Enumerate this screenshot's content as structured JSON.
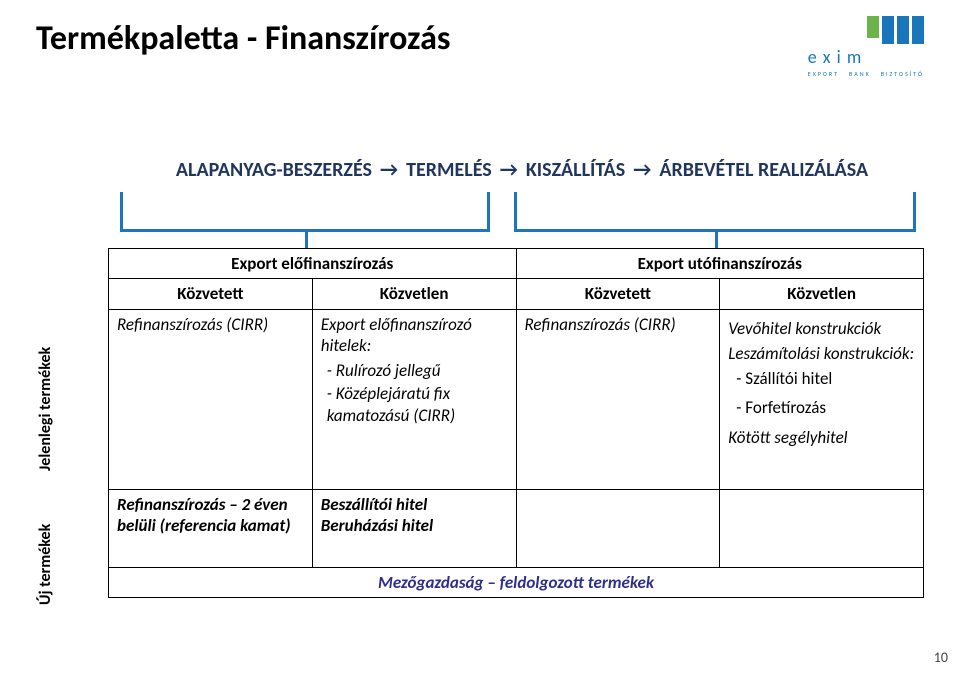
{
  "title": "Termékpaletta - Finanszírozás",
  "logo": {
    "bars": [
      {
        "color": "#6bb34a",
        "height": 22
      },
      {
        "color": "#1976bb",
        "height": 28
      },
      {
        "color": "#1976bb",
        "height": 28
      },
      {
        "color": "#1976bb",
        "height": 28
      }
    ],
    "word": "e x i m",
    "sub": [
      "EXPORT",
      "BANK",
      "BIZTOSÍTÓ"
    ]
  },
  "process": {
    "steps": [
      "ALAPANYAG-BESZERZÉS",
      "TERMELÉS",
      "KISZÁLLÍTÁS",
      "ÁRBEVÉTEL REALIZÁLÁSA"
    ],
    "arrow": "→",
    "color": "#20365f",
    "bracket_color": "#1f75bb"
  },
  "vtabs": {
    "current": "Jelenlegi termékek",
    "new": "Új termékek"
  },
  "table": {
    "top": {
      "left": "Export előfinanszírozás",
      "right": "Export utófinanszírozás"
    },
    "sub": [
      "Közvetett",
      "Közvetlen",
      "Közvetett",
      "Közvetlen"
    ],
    "current": {
      "c1": "Refinanszírozás (CIRR)",
      "c2": {
        "lead": "Export előfinanszírozó hitelek:",
        "items": [
          "- Rulírozó jellegű",
          "- Középlejáratú fix kamatozású (CIRR)"
        ]
      },
      "c3": "Refinanszírozás (CIRR)",
      "c4": {
        "lines": [
          {
            "text": "Vevőhitel konstrukciók",
            "italic": true
          },
          {
            "text": "Leszámítolási konstrukciók:",
            "italic": true
          },
          {
            "text": "- Szállítói hitel",
            "pad": true
          },
          {
            "text": "- Forfetírozás",
            "pad": true
          },
          {
            "text": "Kötött segélyhitel",
            "italic": true
          }
        ]
      }
    },
    "new": {
      "c1": "Refinanszírozás – 2 éven belüli (referencia kamat)",
      "c2": [
        "Beszállítói hitel",
        "Beruházási hitel"
      ],
      "mez": "Mezőgazdaság – feldolgozott termékek"
    }
  },
  "page_number": "10",
  "colors": {
    "accent": "#1f75bb",
    "dark_navy": "#20365f",
    "green": "#6bb34a",
    "mez_text": "#2e2e8e"
  }
}
